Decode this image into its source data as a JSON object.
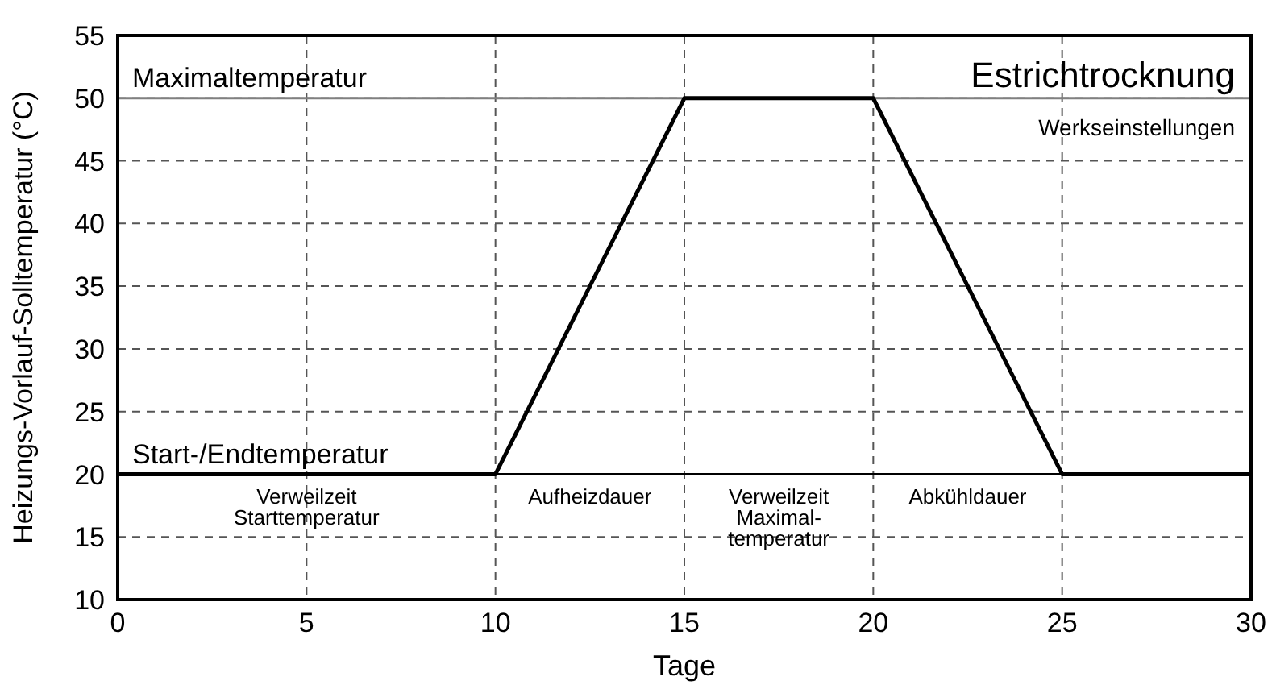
{
  "chart_data": {
    "type": "line",
    "title": "Estrichtrocknung",
    "subtitle": "Werkseinstellungen",
    "xlabel": "Tage",
    "ylabel": "Heizungs-Vorlauf-Solltemperatur (°C)",
    "x": [
      0,
      10,
      15,
      20,
      25,
      30
    ],
    "series": [
      {
        "color": "#000000",
        "values": [
          20,
          20,
          50,
          50,
          20,
          20
        ]
      }
    ],
    "xlim": [
      0,
      30
    ],
    "xticks": [
      0,
      5,
      10,
      15,
      20,
      25,
      30
    ],
    "ylim": [
      10,
      55
    ],
    "yticks": [
      10,
      15,
      20,
      25,
      30,
      35,
      40,
      45,
      50,
      55
    ],
    "grid": true,
    "marker": "none",
    "line_style": "solid",
    "ref_lines": [
      {
        "axis": "y",
        "value": 50,
        "label": "Maximaltemperatur",
        "color": "#808080"
      },
      {
        "axis": "y",
        "value": 20,
        "label": "Start-/Endtemperatur",
        "color": "#000000"
      }
    ],
    "annotations": [
      "Verweilzeit\nStarttemperatur",
      "Aufheizdauer",
      "Verweilzeit\nMaximal-\ntemperatur",
      "Abkühldauer"
    ]
  }
}
